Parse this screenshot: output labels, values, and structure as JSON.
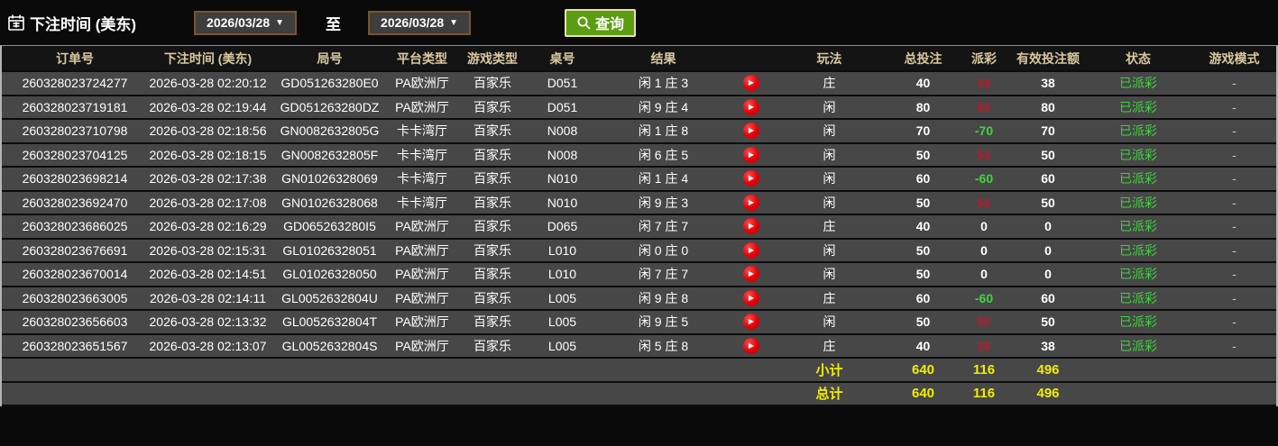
{
  "toolbar": {
    "label": "下注时间 (美东)",
    "date_from": "2026/03/28",
    "to_label": "至",
    "date_to": "2026/03/28",
    "search_label": "查询"
  },
  "icons": {
    "dropdown": "▼",
    "play": "▶"
  },
  "colors": {
    "accent_button_green": "#5b9c12",
    "button_border_cream": "#e9e2a6",
    "date_border_brown": "#7c5526",
    "header_text_tan": "#d9c89e",
    "row_background": "#474747",
    "payout_win_red": "#b01e2e",
    "payout_loss_green": "#3fd43f",
    "status_green": "#3fd43f",
    "totals_yellow": "#f2ed00"
  },
  "table": {
    "headers": [
      "订单号",
      "下注时间 (美东)",
      "局号",
      "平台类型",
      "游戏类型",
      "桌号",
      "结果",
      "",
      "玩法",
      "总投注",
      "派彩",
      "有效投注额",
      "状态",
      "游戏模式"
    ],
    "rows": [
      {
        "order_id": "260328023724277",
        "bet_time": "2026-03-28 02:20:12",
        "round_id": "GD051263280E0",
        "platform": "PA欧洲厅",
        "game_type": "百家乐",
        "table_no": "D051",
        "result": "闲 1 庄 3",
        "play": "庄",
        "total_bet": "40",
        "payout": "38",
        "payout_color": "red",
        "valid_bet": "38",
        "status": "已派彩",
        "game_mode": "-"
      },
      {
        "order_id": "260328023719181",
        "bet_time": "2026-03-28 02:19:44",
        "round_id": "GD051263280DZ",
        "platform": "PA欧洲厅",
        "game_type": "百家乐",
        "table_no": "D051",
        "result": "闲 9 庄 4",
        "play": "闲",
        "total_bet": "80",
        "payout": "80",
        "payout_color": "red",
        "valid_bet": "80",
        "status": "已派彩",
        "game_mode": "-"
      },
      {
        "order_id": "260328023710798",
        "bet_time": "2026-03-28 02:18:56",
        "round_id": "GN0082632805G",
        "platform": "卡卡湾厅",
        "game_type": "百家乐",
        "table_no": "N008",
        "result": "闲 1 庄 8",
        "play": "闲",
        "total_bet": "70",
        "payout": "-70",
        "payout_color": "green",
        "valid_bet": "70",
        "status": "已派彩",
        "game_mode": "-"
      },
      {
        "order_id": "260328023704125",
        "bet_time": "2026-03-28 02:18:15",
        "round_id": "GN0082632805F",
        "platform": "卡卡湾厅",
        "game_type": "百家乐",
        "table_no": "N008",
        "result": "闲 6 庄 5",
        "play": "闲",
        "total_bet": "50",
        "payout": "50",
        "payout_color": "red",
        "valid_bet": "50",
        "status": "已派彩",
        "game_mode": "-"
      },
      {
        "order_id": "260328023698214",
        "bet_time": "2026-03-28 02:17:38",
        "round_id": "GN01026328069",
        "platform": "卡卡湾厅",
        "game_type": "百家乐",
        "table_no": "N010",
        "result": "闲 1 庄 4",
        "play": "闲",
        "total_bet": "60",
        "payout": "-60",
        "payout_color": "green",
        "valid_bet": "60",
        "status": "已派彩",
        "game_mode": "-"
      },
      {
        "order_id": "260328023692470",
        "bet_time": "2026-03-28 02:17:08",
        "round_id": "GN01026328068",
        "platform": "卡卡湾厅",
        "game_type": "百家乐",
        "table_no": "N010",
        "result": "闲 9 庄 3",
        "play": "闲",
        "total_bet": "50",
        "payout": "50",
        "payout_color": "red",
        "valid_bet": "50",
        "status": "已派彩",
        "game_mode": "-"
      },
      {
        "order_id": "260328023686025",
        "bet_time": "2026-03-28 02:16:29",
        "round_id": "GD065263280I5",
        "platform": "PA欧洲厅",
        "game_type": "百家乐",
        "table_no": "D065",
        "result": "闲 7 庄 7",
        "play": "庄",
        "total_bet": "40",
        "payout": "0",
        "payout_color": "neutral",
        "valid_bet": "0",
        "status": "已派彩",
        "game_mode": "-"
      },
      {
        "order_id": "260328023676691",
        "bet_time": "2026-03-28 02:15:31",
        "round_id": "GL01026328051",
        "platform": "PA欧洲厅",
        "game_type": "百家乐",
        "table_no": "L010",
        "result": "闲 0 庄 0",
        "play": "闲",
        "total_bet": "50",
        "payout": "0",
        "payout_color": "neutral",
        "valid_bet": "0",
        "status": "已派彩",
        "game_mode": "-"
      },
      {
        "order_id": "260328023670014",
        "bet_time": "2026-03-28 02:14:51",
        "round_id": "GL01026328050",
        "platform": "PA欧洲厅",
        "game_type": "百家乐",
        "table_no": "L010",
        "result": "闲 7 庄 7",
        "play": "闲",
        "total_bet": "50",
        "payout": "0",
        "payout_color": "neutral",
        "valid_bet": "0",
        "status": "已派彩",
        "game_mode": "-"
      },
      {
        "order_id": "260328023663005",
        "bet_time": "2026-03-28 02:14:11",
        "round_id": "GL0052632804U",
        "platform": "PA欧洲厅",
        "game_type": "百家乐",
        "table_no": "L005",
        "result": "闲 9 庄 8",
        "play": "庄",
        "total_bet": "60",
        "payout": "-60",
        "payout_color": "green",
        "valid_bet": "60",
        "status": "已派彩",
        "game_mode": "-"
      },
      {
        "order_id": "260328023656603",
        "bet_time": "2026-03-28 02:13:32",
        "round_id": "GL0052632804T",
        "platform": "PA欧洲厅",
        "game_type": "百家乐",
        "table_no": "L005",
        "result": "闲 9 庄 5",
        "play": "闲",
        "total_bet": "50",
        "payout": "50",
        "payout_color": "red",
        "valid_bet": "50",
        "status": "已派彩",
        "game_mode": "-"
      },
      {
        "order_id": "260328023651567",
        "bet_time": "2026-03-28 02:13:07",
        "round_id": "GL0052632804S",
        "platform": "PA欧洲厅",
        "game_type": "百家乐",
        "table_no": "L005",
        "result": "闲 5 庄 8",
        "play": "庄",
        "total_bet": "40",
        "payout": "38",
        "payout_color": "red",
        "valid_bet": "38",
        "status": "已派彩",
        "game_mode": "-"
      }
    ],
    "subtotal": {
      "label": "小计",
      "total_bet": "640",
      "payout": "116",
      "valid_bet": "496"
    },
    "total": {
      "label": "总计",
      "total_bet": "640",
      "payout": "116",
      "valid_bet": "496"
    }
  }
}
